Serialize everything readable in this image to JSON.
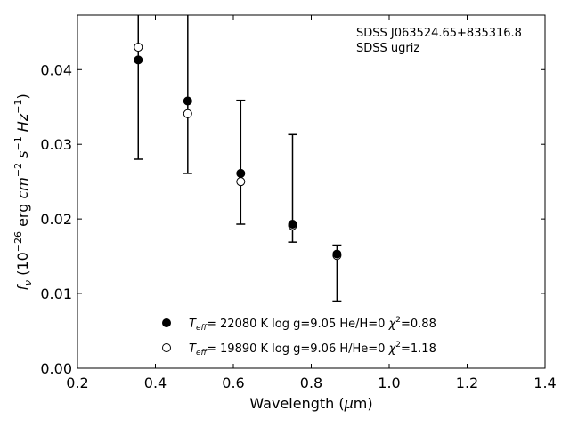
{
  "chart_data": {
    "type": "scatter",
    "xlabel": "Wavelength (μm)",
    "ylabel": "fν (10⁻²⁶ erg cm⁻² s⁻¹ Hz⁻¹)",
    "xlim": [
      0.2,
      1.4
    ],
    "ylim": [
      0.0,
      0.0473
    ],
    "xticks": [
      0.2,
      0.4,
      0.6,
      0.8,
      1.0,
      1.2,
      1.4
    ],
    "xtick_labels": [
      "0.2",
      "0.4",
      "0.6",
      "0.8",
      "1.0",
      "1.2",
      "1.4"
    ],
    "yticks": [
      0.0,
      0.01,
      0.02,
      0.03,
      0.04
    ],
    "ytick_labels": [
      "0.00",
      "0.01",
      "0.02",
      "0.03",
      "0.04"
    ],
    "annotations": [
      "SDSS J063524.65+835316.8",
      "SDSS ugriz"
    ],
    "grid": false,
    "legend_position": "bottom-center",
    "observed": {
      "x": [
        0.356,
        0.483,
        0.619,
        0.752,
        0.866
      ],
      "err_low": [
        0.028,
        0.0261,
        0.0193,
        0.0169,
        0.009
      ],
      "err_high": [
        0.0473,
        0.0473,
        0.0359,
        0.0313,
        0.0165
      ]
    },
    "series": [
      {
        "name": "Teff= 22080 K  log g=9.05  He/H=0  χ²=0.88",
        "marker": "filled-circle",
        "x": [
          0.356,
          0.483,
          0.619,
          0.752,
          0.866
        ],
        "y": [
          0.0413,
          0.0358,
          0.0261,
          0.0193,
          0.0153
        ]
      },
      {
        "name": "Teff= 19890 K  log g=9.06  H/He=0  χ²=1.18",
        "marker": "open-circle",
        "x": [
          0.356,
          0.483,
          0.619,
          0.752,
          0.866
        ],
        "y": [
          0.043,
          0.0341,
          0.025,
          0.0191,
          0.0151
        ]
      }
    ],
    "legend": {
      "entries": [
        {
          "teff_value": "= 22080 K  log g=9.05  He/H=0  ",
          "chi_value": "=0.88"
        },
        {
          "teff_value": "= 19890 K  log g=9.06  H/He=0  ",
          "chi_value": "=1.18"
        }
      ]
    }
  }
}
